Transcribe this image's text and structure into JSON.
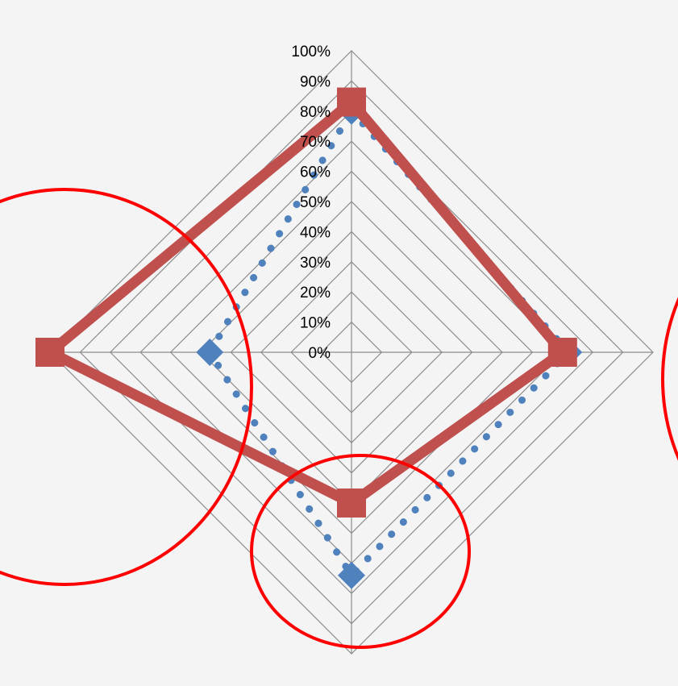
{
  "chart_data": {
    "type": "radar",
    "title": "",
    "axes_count": 4,
    "rlim": [
      0,
      1
    ],
    "tick_labels": [
      "0%",
      "10%",
      "20%",
      "30%",
      "40%",
      "50%",
      "60%",
      "70%",
      "80%",
      "90%",
      "100%"
    ],
    "grid": true,
    "legend": "none",
    "series": [
      {
        "values": [
          0.8,
          0.72,
          0.74,
          0.47
        ],
        "color": "#4f81bd",
        "line": "dotted",
        "marker": "diamond"
      },
      {
        "values": [
          0.83,
          0.7,
          0.5,
          1.0
        ],
        "color": "#c0504d",
        "line": "solid",
        "marker": "square"
      }
    ],
    "annotations": [
      {
        "shape": "ellipse",
        "color": "#ff0000",
        "target": "left axis"
      },
      {
        "shape": "ellipse",
        "color": "#ff0000",
        "target": "bottom axis"
      },
      {
        "shape": "ellipse",
        "color": "#ff0000",
        "target": "right edge (partially visible)"
      }
    ]
  }
}
